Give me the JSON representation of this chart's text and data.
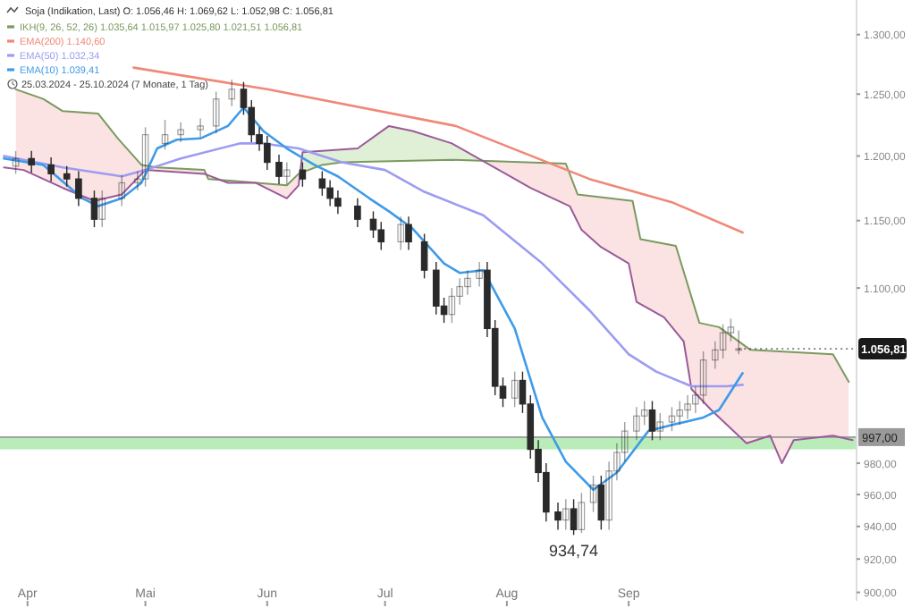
{
  "chart_data": {
    "type": "candlestick",
    "title": "Soja (Indikation, Last) O: 1.056,46 H: 1.069,62 L: 1.052,98 C: 1.056,81",
    "log": "y",
    "legend": "top left",
    "xlim": [
      "2024-03-25",
      "2024-10-29"
    ],
    "xticks": [
      {
        "value": "2024-04-01",
        "label": "Apr"
      },
      {
        "value": "2024-05-01",
        "label": "Mai"
      },
      {
        "value": "2024-06-01",
        "label": "Jun"
      },
      {
        "value": "2024-07-01",
        "label": "Jul"
      },
      {
        "value": "2024-08-01",
        "label": "Aug"
      },
      {
        "value": "2024-09-01",
        "label": "Sep"
      }
    ],
    "ylim": [
      895,
      1330
    ],
    "yticks": [
      {
        "value": 900,
        "label": "900,00"
      },
      {
        "value": 920,
        "label": "920,00"
      },
      {
        "value": 940,
        "label": "940,00"
      },
      {
        "value": 960,
        "label": "960,00"
      },
      {
        "value": 980,
        "label": "980,00"
      },
      {
        "value": 1100,
        "label": "1.100,00"
      },
      {
        "value": 1150,
        "label": "1.150,00"
      },
      {
        "value": 1200,
        "label": "1.200,00"
      },
      {
        "value": 1250,
        "label": "1.250,00"
      },
      {
        "value": 1300,
        "label": "1.300,00"
      }
    ],
    "ref_lines": [
      {
        "axis": "y",
        "value": 997,
        "label": "997,00",
        "color": "#999999"
      }
    ],
    "bands": [
      {
        "axis": "y",
        "from": 989,
        "to": 997,
        "color": "#9be49b"
      }
    ],
    "annotations": [
      "25.03.2024 - 25.10.2024 (7 Monate, 1 Tag)",
      {
        "text": "934,74",
        "x": "2024-08-18",
        "y": 934.74
      },
      {
        "text": "1.056,81",
        "x": "2024-09-29",
        "y": 1056.81
      }
    ],
    "series": [
      {
        "type": "line",
        "color": "#7a9a5e",
        "name": "IKH(9, 26, 52, 26) 1.035,64 1.015,97 1.025,80 1.021,51 1.056,81",
        "x": [
          "2024-03-29",
          "2024-04-05",
          "2024-04-10",
          "2024-04-19",
          "2024-04-24",
          "2024-04-30",
          "2024-05-04",
          "2024-05-16",
          "2024-05-17",
          "2024-06-06",
          "2024-06-09",
          "2024-06-15",
          "2024-06-20",
          "2024-07-18",
          "2024-08-16",
          "2024-08-19",
          "2024-09-02",
          "2024-09-04",
          "2024-09-13",
          "2024-09-19",
          "2024-09-24",
          "2024-10-02",
          "2024-10-23",
          "2024-10-27"
        ],
        "values": [
          1254,
          1246,
          1236,
          1234,
          1214,
          1193,
          1191,
          1189,
          1182,
          1177,
          1186,
          1193,
          1195,
          1197,
          1194,
          1170,
          1165,
          1136,
          1131,
          1075,
          1072,
          1056,
          1053,
          1034
        ]
      },
      {
        "type": "line",
        "color": "#9a5a9a",
        "x": [
          "2024-03-26",
          "2024-03-31",
          "2024-04-10",
          "2024-04-18",
          "2024-04-25",
          "2024-05-01",
          "2024-05-16",
          "2024-05-22",
          "2024-05-29",
          "2024-06-06",
          "2024-06-09",
          "2024-06-10",
          "2024-06-24",
          "2024-07-02",
          "2024-07-08",
          "2024-07-18",
          "2024-08-03",
          "2024-08-07",
          "2024-08-17",
          "2024-08-20",
          "2024-08-25",
          "2024-09-01",
          "2024-09-03",
          "2024-09-10",
          "2024-09-15",
          "2024-09-17",
          "2024-09-22",
          "2024-10-01",
          "2024-10-07",
          "2024-10-10",
          "2024-10-13",
          "2024-10-23",
          "2024-10-28"
        ],
        "values": [
          1191,
          1189,
          1175,
          1165,
          1170,
          1189,
          1186,
          1179,
          1179,
          1167,
          1177,
          1203,
          1206,
          1224,
          1220,
          1210,
          1182,
          1175,
          1161,
          1143,
          1130,
          1118,
          1090,
          1079,
          1062,
          1029,
          1015,
          993,
          998,
          980,
          995,
          998,
          995
        ]
      },
      {
        "type": "line",
        "color": "#f08878",
        "name": "EMA(200) 1.140,60",
        "x": [
          "2024-04-28",
          "2024-06-01",
          "2024-07-19",
          "2024-08-22",
          "2024-09-12",
          "2024-09-30"
        ],
        "values": [
          1272,
          1254,
          1224,
          1182,
          1164,
          1141
        ]
      },
      {
        "type": "line",
        "color": "#9c9cf2",
        "name": "EMA(50) 1.032,34",
        "x": [
          "2024-03-26",
          "2024-04-10",
          "2024-04-25",
          "2024-05-01",
          "2024-05-10",
          "2024-05-25",
          "2024-05-31",
          "2024-06-09",
          "2024-06-20",
          "2024-07-01",
          "2024-07-11",
          "2024-07-26",
          "2024-08-10",
          "2024-08-22",
          "2024-09-01",
          "2024-09-08",
          "2024-09-17",
          "2024-09-26",
          "2024-09-30"
        ],
        "values": [
          1200,
          1191,
          1184,
          1189,
          1198,
          1210,
          1210,
          1206,
          1195,
          1189,
          1172,
          1154,
          1118,
          1084,
          1053,
          1041,
          1031,
          1031,
          1032
        ]
      },
      {
        "type": "line",
        "color": "#3d9be9",
        "name": "EMA(10) 1.039,41",
        "x": [
          "2024-03-26",
          "2024-04-05",
          "2024-04-15",
          "2024-04-19",
          "2024-04-25",
          "2024-04-30",
          "2024-05-04",
          "2024-05-09",
          "2024-05-15",
          "2024-05-22",
          "2024-05-26",
          "2024-05-31",
          "2024-06-06",
          "2024-06-13",
          "2024-06-19",
          "2024-06-27",
          "2024-07-02",
          "2024-07-08",
          "2024-07-16",
          "2024-07-20",
          "2024-07-26",
          "2024-08-03",
          "2024-08-10",
          "2024-08-16",
          "2024-08-23",
          "2024-08-29",
          "2024-09-06",
          "2024-09-12",
          "2024-09-20",
          "2024-09-24",
          "2024-09-30"
        ],
        "values": [
          1198,
          1193,
          1167,
          1161,
          1167,
          1179,
          1206,
          1213,
          1214,
          1224,
          1239,
          1220,
          1206,
          1193,
          1184,
          1167,
          1157,
          1144,
          1118,
          1111,
          1113,
          1071,
          1010,
          981,
          963,
          974,
          1001,
          1005,
          1010,
          1015,
          1040
        ]
      },
      {
        "color": "#2a2a2a",
        "x": [
          "2024-03-29",
          "2024-04-02",
          "2024-04-07",
          "2024-04-11",
          "2024-04-14",
          "2024-04-18",
          "2024-04-20",
          "2024-04-25",
          "2024-04-29",
          "2024-05-01",
          "2024-05-06",
          "2024-05-10",
          "2024-05-15",
          "2024-05-19",
          "2024-05-23",
          "2024-05-26",
          "2024-05-28",
          "2024-05-30",
          "2024-06-01",
          "2024-06-04",
          "2024-06-06",
          "2024-06-10",
          "2024-06-15",
          "2024-06-17",
          "2024-06-19",
          "2024-06-24",
          "2024-06-28",
          "2024-06-30",
          "2024-07-05",
          "2024-07-07",
          "2024-07-11",
          "2024-07-14",
          "2024-07-16",
          "2024-07-18",
          "2024-07-20",
          "2024-07-22",
          "2024-07-25",
          "2024-07-27",
          "2024-07-29",
          "2024-07-31",
          "2024-08-03",
          "2024-08-05",
          "2024-08-07",
          "2024-08-09",
          "2024-08-11",
          "2024-08-14",
          "2024-08-16",
          "2024-08-18",
          "2024-08-20",
          "2024-08-23",
          "2024-08-25",
          "2024-08-27",
          "2024-08-29",
          "2024-08-31",
          "2024-09-03",
          "2024-09-05",
          "2024-09-07",
          "2024-09-09",
          "2024-09-12",
          "2024-09-14",
          "2024-09-16",
          "2024-09-18",
          "2024-09-20",
          "2024-09-23",
          "2024-09-25",
          "2024-09-27",
          "2024-09-29"
        ],
        "ohlc": [
          [
            1192,
            1204,
            1186,
            1198
          ],
          [
            1198,
            1204,
            1187,
            1193
          ],
          [
            1193,
            1199,
            1180,
            1186
          ],
          [
            1186,
            1192,
            1176,
            1182
          ],
          [
            1182,
            1188,
            1161,
            1167
          ],
          [
            1167,
            1173,
            1145,
            1151
          ],
          [
            1151,
            1173,
            1145,
            1167
          ],
          [
            1167,
            1185,
            1161,
            1179
          ],
          [
            1179,
            1188,
            1173,
            1182
          ],
          [
            1182,
            1223,
            1176,
            1217
          ],
          [
            1210,
            1229,
            1205,
            1217
          ],
          [
            1217,
            1227,
            1211,
            1221
          ],
          [
            1221,
            1230,
            1215,
            1224
          ],
          [
            1224,
            1252,
            1218,
            1246
          ],
          [
            1246,
            1262,
            1240,
            1254
          ],
          [
            1254,
            1260,
            1233,
            1239
          ],
          [
            1239,
            1245,
            1211,
            1217
          ],
          [
            1217,
            1223,
            1204,
            1210
          ],
          [
            1210,
            1216,
            1189,
            1195
          ],
          [
            1195,
            1201,
            1178,
            1184
          ],
          [
            1184,
            1195,
            1178,
            1189
          ],
          [
            1189,
            1195,
            1176,
            1182
          ],
          [
            1182,
            1188,
            1169,
            1175
          ],
          [
            1175,
            1181,
            1161,
            1167
          ],
          [
            1167,
            1173,
            1155,
            1161
          ],
          [
            1161,
            1167,
            1145,
            1151
          ],
          [
            1151,
            1157,
            1137,
            1143
          ],
          [
            1143,
            1149,
            1128,
            1134
          ],
          [
            1134,
            1153,
            1128,
            1147
          ],
          [
            1147,
            1153,
            1128,
            1134
          ],
          [
            1134,
            1140,
            1107,
            1113
          ],
          [
            1113,
            1119,
            1081,
            1087
          ],
          [
            1087,
            1093,
            1075,
            1081
          ],
          [
            1081,
            1100,
            1075,
            1094
          ],
          [
            1094,
            1107,
            1088,
            1101
          ],
          [
            1101,
            1113,
            1095,
            1107
          ],
          [
            1107,
            1119,
            1101,
            1113
          ],
          [
            1113,
            1119,
            1065,
            1071
          ],
          [
            1071,
            1077,
            1025,
            1031
          ],
          [
            1031,
            1037,
            1017,
            1023
          ],
          [
            1023,
            1041,
            1017,
            1035
          ],
          [
            1035,
            1041,
            1013,
            1019
          ],
          [
            1019,
            1025,
            983,
            989
          ],
          [
            989,
            995,
            968,
            974
          ],
          [
            974,
            980,
            943,
            949
          ],
          [
            949,
            955,
            938,
            944
          ],
          [
            944,
            957,
            938,
            951
          ],
          [
            951,
            957,
            934.74,
            938
          ],
          [
            938,
            961,
            936,
            955
          ],
          [
            955,
            972,
            949,
            966
          ],
          [
            966,
            972,
            938,
            944
          ],
          [
            944,
            981,
            938,
            975
          ],
          [
            975,
            993,
            969,
            987
          ],
          [
            987,
            1007,
            981,
            1001
          ],
          [
            1001,
            1017,
            995,
            1011
          ],
          [
            1011,
            1021,
            1005,
            1015
          ],
          [
            1015,
            1021,
            995,
            1001
          ],
          [
            1001,
            1013,
            995,
            1007
          ],
          [
            1007,
            1017,
            1001,
            1011
          ],
          [
            1011,
            1021,
            1005,
            1015
          ],
          [
            1015,
            1025,
            1009,
            1019
          ],
          [
            1019,
            1031,
            1013,
            1025
          ],
          [
            1025,
            1055,
            1019,
            1049
          ],
          [
            1049,
            1062,
            1043,
            1056
          ],
          [
            1056,
            1074,
            1050,
            1068
          ],
          [
            1068,
            1078,
            1062,
            1072
          ],
          [
            1056.46,
            1069.62,
            1052.98,
            1056.81
          ]
        ]
      }
    ]
  }
}
